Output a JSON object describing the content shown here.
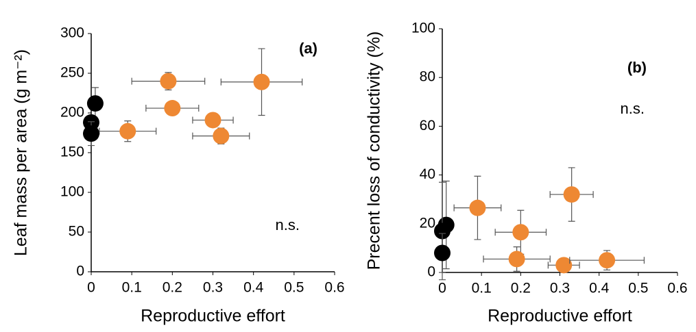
{
  "chart_data": [
    {
      "type": "scatter",
      "panel_label": "(a)",
      "annotation": "n.s.",
      "x_label": "Reproductive effort",
      "y_label": "Leaf mass per area (g m⁻²)",
      "xlim": [
        0,
        0.6
      ],
      "xticks": [
        0,
        0.1,
        0.2,
        0.3,
        0.4,
        0.5,
        0.6
      ],
      "ylim": [
        0,
        300
      ],
      "yticks": [
        0,
        50,
        100,
        150,
        200,
        250,
        300
      ],
      "series": [
        {
          "color": "#ee8833",
          "x": [
            0.19,
            0.42,
            0.2,
            0.3,
            0.32,
            0.09
          ],
          "values": [
            240,
            239,
            206,
            191,
            171,
            177
          ],
          "xerr": [
            0.09,
            0.1,
            0.065,
            0.05,
            0.07,
            0.07
          ],
          "yerr": [
            11,
            42,
            5,
            5,
            10,
            13
          ]
        },
        {
          "color": "#000000",
          "x": [
            0.01,
            0,
            0
          ],
          "values": [
            212,
            188,
            174
          ],
          "xerr": [
            0,
            0,
            0
          ],
          "yerr": [
            20,
            5,
            15
          ]
        }
      ]
    },
    {
      "type": "scatter",
      "panel_label": "(b)",
      "annotation": "n.s.",
      "x_label": "Reproductive effort",
      "y_label": "Precent loss of conductivity (%)",
      "xlim": [
        0,
        0.6
      ],
      "xticks": [
        0,
        0.1,
        0.2,
        0.3,
        0.4,
        0.5,
        0.6
      ],
      "ylim": [
        0,
        100
      ],
      "yticks": [
        0,
        20,
        40,
        60,
        80,
        100
      ],
      "series": [
        {
          "color": "#ee8833",
          "x": [
            0.09,
            0.2,
            0.33,
            0.19,
            0.31,
            0.42
          ],
          "values": [
            26.5,
            16.5,
            32,
            5.5,
            3,
            5
          ],
          "xerr": [
            0.06,
            0.065,
            0.055,
            0.085,
            0.04,
            0.095
          ],
          "yerr": [
            13,
            9,
            11,
            5,
            1,
            4
          ]
        },
        {
          "color": "#000000",
          "x": [
            0.01,
            0,
            0
          ],
          "values": [
            19.5,
            17,
            8
          ],
          "xerr": [
            0,
            0,
            0
          ],
          "yerr": [
            18,
            20,
            8
          ]
        }
      ]
    }
  ]
}
